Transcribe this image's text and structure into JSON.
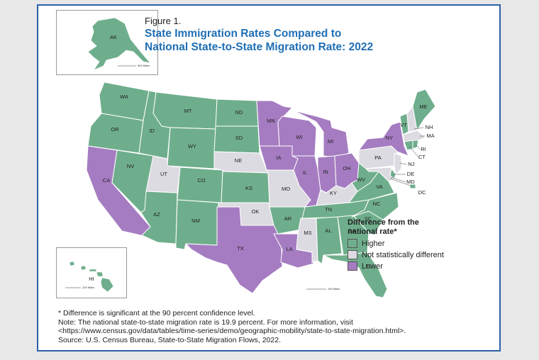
{
  "figure": {
    "label": "Figure 1.",
    "title_line1": "State Immigration Rates Compared to",
    "title_line2": "National State-to-State Migration Rate: 2022"
  },
  "colors": {
    "higher": "#6fae8c",
    "not_different": "#dddbe2",
    "lower": "#a57cc1",
    "border": "#ffffff",
    "frame": "#2d5fa6"
  },
  "legend": {
    "title_line1": "Difference from the",
    "title_line2": "national rate*",
    "items": [
      {
        "key": "higher",
        "label": "Higher"
      },
      {
        "key": "not_different",
        "label": "Not statistically different"
      },
      {
        "key": "lower",
        "label": "Lower"
      }
    ]
  },
  "insets": {
    "alaska": {
      "label": "AK",
      "scale": "500 Miles"
    },
    "hawaii": {
      "label": "HI",
      "scale": "100 Miles"
    },
    "mainland_scale": "100 Miles"
  },
  "states": [
    {
      "abbr": "WA",
      "category": "higher"
    },
    {
      "abbr": "OR",
      "category": "higher"
    },
    {
      "abbr": "CA",
      "category": "lower"
    },
    {
      "abbr": "NV",
      "category": "higher"
    },
    {
      "abbr": "ID",
      "category": "higher"
    },
    {
      "abbr": "MT",
      "category": "higher"
    },
    {
      "abbr": "WY",
      "category": "higher"
    },
    {
      "abbr": "UT",
      "category": "not_different"
    },
    {
      "abbr": "AZ",
      "category": "higher"
    },
    {
      "abbr": "CO",
      "category": "higher"
    },
    {
      "abbr": "NM",
      "category": "higher"
    },
    {
      "abbr": "ND",
      "category": "higher"
    },
    {
      "abbr": "SD",
      "category": "higher"
    },
    {
      "abbr": "NE",
      "category": "not_different"
    },
    {
      "abbr": "KS",
      "category": "higher"
    },
    {
      "abbr": "OK",
      "category": "not_different"
    },
    {
      "abbr": "TX",
      "category": "lower"
    },
    {
      "abbr": "MN",
      "category": "lower"
    },
    {
      "abbr": "IA",
      "category": "lower"
    },
    {
      "abbr": "MO",
      "category": "not_different"
    },
    {
      "abbr": "AR",
      "category": "higher"
    },
    {
      "abbr": "LA",
      "category": "lower"
    },
    {
      "abbr": "WI",
      "category": "lower"
    },
    {
      "abbr": "IL",
      "category": "lower"
    },
    {
      "abbr": "MI",
      "category": "lower"
    },
    {
      "abbr": "IN",
      "category": "lower"
    },
    {
      "abbr": "OH",
      "category": "lower"
    },
    {
      "abbr": "KY",
      "category": "not_different"
    },
    {
      "abbr": "TN",
      "category": "higher"
    },
    {
      "abbr": "MS",
      "category": "not_different"
    },
    {
      "abbr": "AL",
      "category": "higher"
    },
    {
      "abbr": "GA",
      "category": "higher"
    },
    {
      "abbr": "FL",
      "category": "higher"
    },
    {
      "abbr": "SC",
      "category": "higher"
    },
    {
      "abbr": "NC",
      "category": "higher"
    },
    {
      "abbr": "VA",
      "category": "higher"
    },
    {
      "abbr": "WV",
      "category": "higher"
    },
    {
      "abbr": "PA",
      "category": "not_different"
    },
    {
      "abbr": "NY",
      "category": "lower"
    },
    {
      "abbr": "VT",
      "category": "higher"
    },
    {
      "abbr": "NH",
      "category": "not_different"
    },
    {
      "abbr": "ME",
      "category": "higher"
    },
    {
      "abbr": "MA",
      "category": "not_different"
    },
    {
      "abbr": "RI",
      "category": "higher"
    },
    {
      "abbr": "CT",
      "category": "higher"
    },
    {
      "abbr": "NJ",
      "category": "not_different"
    },
    {
      "abbr": "DE",
      "category": "higher"
    },
    {
      "abbr": "MD",
      "category": "not_different"
    },
    {
      "abbr": "DC",
      "category": "higher"
    },
    {
      "abbr": "AK",
      "category": "higher"
    },
    {
      "abbr": "HI",
      "category": "higher"
    }
  ],
  "notes": {
    "line1": "* Difference is significant at the 90 percent confidence level.",
    "line2": "Note: The national state-to-state migration rate is 19.9 percent. For more information, visit",
    "line3": "<https://www.census.gov/data/tables/time-series/demo/geographic-mobility/state-to-state-migration.html>.",
    "line4": "Source: U.S. Census Bureau, State-to-State Migration Flows, 2022."
  }
}
